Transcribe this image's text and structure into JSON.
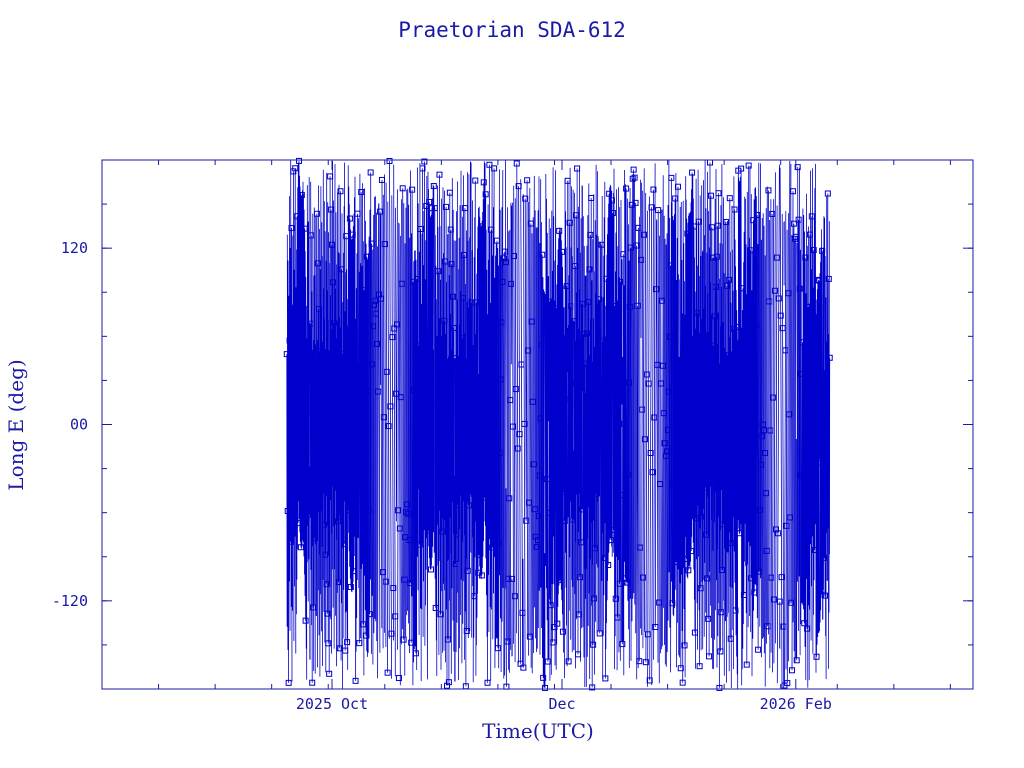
{
  "chart_data": {
    "type": "scatter",
    "title": "Praetorian SDA-612",
    "xlabel": "Time(UTC)",
    "ylabel": "Long E (deg)",
    "xlim": [
      "2025-08-01",
      "2026-03-20"
    ],
    "ylim": [
      -180,
      180
    ],
    "x_ticks": [
      {
        "date": "2025-10-01",
        "label": "2025 Oct"
      },
      {
        "date": "2025-12-01",
        "label": "Dec"
      },
      {
        "date": "2026-02-01",
        "label": "2026 Feb"
      }
    ],
    "y_ticks": [
      {
        "value": 120,
        "label": "120"
      },
      {
        "value": 0,
        "label": "00"
      },
      {
        "value": -120,
        "label": "-120"
      }
    ],
    "grid": false,
    "data_start": "2025-09-19",
    "data_end": "2026-02-10",
    "series_description": "Longitude wraps continuously between -180 and 180 deg (drifting object); markers are sampled position fixes",
    "colors": {
      "line": "#0000cc",
      "marker": "#0000cc",
      "frame": "#1a1aa6",
      "text": "#1a1aa6"
    }
  }
}
